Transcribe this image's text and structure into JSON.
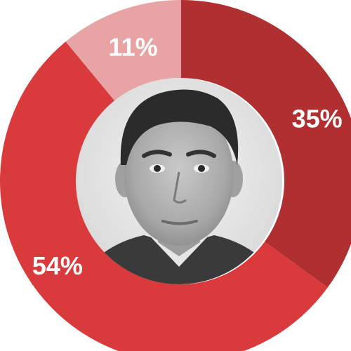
{
  "chart_data": {
    "type": "pie",
    "donut": true,
    "slices": [
      {
        "label": "35%",
        "value": 35,
        "color": "#b03032"
      },
      {
        "label": "54%",
        "value": 54,
        "color": "#d93b3d"
      },
      {
        "label": "11%",
        "value": 11,
        "color": "#e8a3a4"
      }
    ],
    "center_image": "portrait-photo"
  }
}
